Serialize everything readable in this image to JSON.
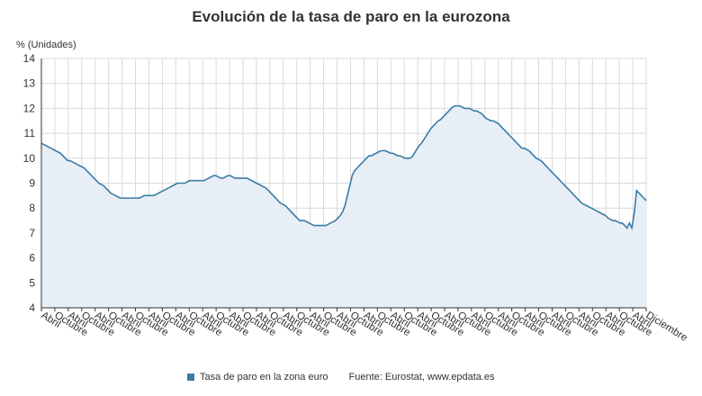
{
  "header": {
    "title": "Evolución de la tasa de paro en la eurozona",
    "unit_label": "% (Unidades)"
  },
  "legend": {
    "series_label": "Tasa de paro en la zona euro",
    "source": "Fuente: Eurostat, www.epdata.es"
  },
  "colors": {
    "line": "#3a7ca5",
    "fill": "#e8eef6",
    "grid": "#d9d9d9",
    "axis": "#333333"
  },
  "chart_data": {
    "type": "area",
    "title": "Evolución de la tasa de paro en la eurozona",
    "ylabel": "% (Unidades)",
    "ylim": [
      4,
      14
    ],
    "yticks": [
      4,
      5,
      6,
      7,
      8,
      9,
      10,
      11,
      12,
      13,
      14
    ],
    "grid": true,
    "legend_position": "bottom",
    "x_tick_labels": [
      "Abril",
      "Octubre",
      "Abril",
      "Octubre",
      "Abril",
      "Octubre",
      "Abril",
      "Octubre",
      "Abril",
      "Octubre",
      "Abril",
      "Octubre",
      "Abril",
      "Octubre",
      "Abril",
      "Octubre",
      "Abril",
      "Octubre",
      "Abril",
      "Octubre",
      "Abril",
      "Octubre",
      "Abril",
      "Octubre",
      "Abril",
      "Octubre",
      "Abril",
      "Octubre",
      "Abril",
      "Octubre",
      "Abril",
      "Octubre",
      "Abril",
      "Octubre",
      "Abril",
      "Octubre",
      "Abril",
      "Octubre",
      "Abril",
      "Octubre",
      "Abril",
      "Octubre",
      "Abril",
      "Octubre",
      "Abril",
      "Diciembre"
    ],
    "series": [
      {
        "name": "Tasa de paro en la zona euro",
        "values": [
          10.6,
          10.55,
          10.5,
          10.45,
          10.4,
          10.35,
          10.3,
          10.25,
          10.2,
          10.1,
          10.0,
          9.9,
          9.9,
          9.85,
          9.8,
          9.75,
          9.7,
          9.65,
          9.6,
          9.5,
          9.4,
          9.3,
          9.2,
          9.1,
          9.0,
          8.95,
          8.9,
          8.8,
          8.7,
          8.6,
          8.55,
          8.5,
          8.45,
          8.4,
          8.4,
          8.4,
          8.4,
          8.4,
          8.4,
          8.4,
          8.4,
          8.4,
          8.45,
          8.5,
          8.5,
          8.5,
          8.5,
          8.5,
          8.55,
          8.6,
          8.65,
          8.7,
          8.75,
          8.8,
          8.85,
          8.9,
          8.95,
          9.0,
          9.0,
          9.0,
          9.0,
          9.05,
          9.1,
          9.1,
          9.1,
          9.1,
          9.1,
          9.1,
          9.1,
          9.15,
          9.2,
          9.25,
          9.3,
          9.3,
          9.25,
          9.2,
          9.2,
          9.25,
          9.3,
          9.3,
          9.25,
          9.2,
          9.2,
          9.2,
          9.2,
          9.2,
          9.2,
          9.15,
          9.1,
          9.05,
          9.0,
          8.95,
          8.9,
          8.85,
          8.8,
          8.7,
          8.6,
          8.5,
          8.4,
          8.3,
          8.2,
          8.15,
          8.1,
          8.0,
          7.9,
          7.8,
          7.7,
          7.6,
          7.5,
          7.5,
          7.5,
          7.45,
          7.4,
          7.35,
          7.3,
          7.3,
          7.3,
          7.3,
          7.3,
          7.3,
          7.35,
          7.4,
          7.45,
          7.5,
          7.6,
          7.7,
          7.85,
          8.1,
          8.5,
          8.9,
          9.3,
          9.5,
          9.6,
          9.7,
          9.8,
          9.9,
          10.0,
          10.1,
          10.1,
          10.15,
          10.2,
          10.25,
          10.3,
          10.3,
          10.3,
          10.25,
          10.2,
          10.2,
          10.15,
          10.1,
          10.1,
          10.05,
          10.0,
          10.0,
          10.0,
          10.05,
          10.2,
          10.35,
          10.5,
          10.6,
          10.75,
          10.9,
          11.05,
          11.2,
          11.3,
          11.4,
          11.5,
          11.55,
          11.65,
          11.75,
          11.85,
          11.95,
          12.05,
          12.1,
          12.1,
          12.1,
          12.05,
          12.0,
          12.0,
          12.0,
          11.95,
          11.9,
          11.9,
          11.85,
          11.8,
          11.7,
          11.6,
          11.55,
          11.5,
          11.5,
          11.45,
          11.4,
          11.3,
          11.2,
          11.1,
          11.0,
          10.9,
          10.8,
          10.7,
          10.6,
          10.5,
          10.4,
          10.4,
          10.35,
          10.3,
          10.2,
          10.1,
          10.0,
          9.95,
          9.9,
          9.8,
          9.7,
          9.6,
          9.5,
          9.4,
          9.3,
          9.2,
          9.1,
          9.0,
          8.9,
          8.8,
          8.7,
          8.6,
          8.5,
          8.4,
          8.3,
          8.2,
          8.15,
          8.1,
          8.05,
          8.0,
          7.95,
          7.9,
          7.85,
          7.8,
          7.75,
          7.7,
          7.6,
          7.55,
          7.5,
          7.5,
          7.45,
          7.4,
          7.4,
          7.3,
          7.2,
          7.4,
          7.2,
          7.8,
          8.7,
          8.6,
          8.5,
          8.4,
          8.3
        ]
      }
    ]
  }
}
